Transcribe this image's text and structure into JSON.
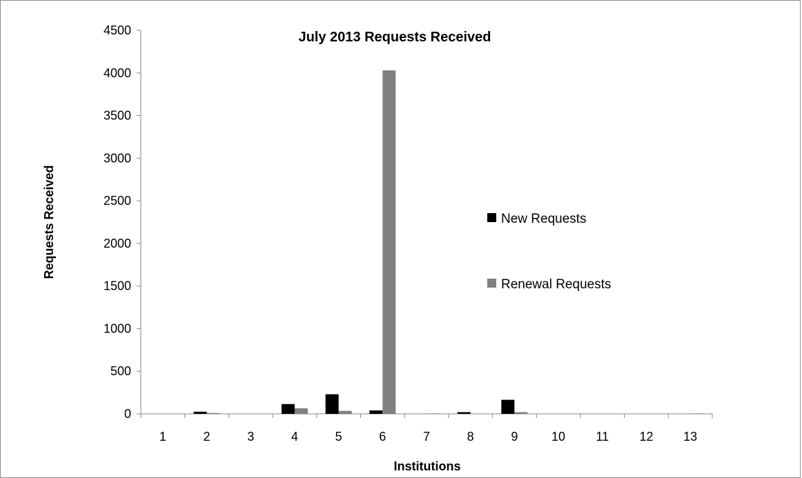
{
  "chart_data": {
    "type": "bar",
    "title": "July 2013 Requests Received",
    "xlabel": "Institutions",
    "ylabel": "Requests Received",
    "categories": [
      "1",
      "2",
      "3",
      "4",
      "5",
      "6",
      "7",
      "8",
      "9",
      "10",
      "11",
      "12",
      "13"
    ],
    "yticks": [
      "0",
      "500",
      "1000",
      "1500",
      "2000",
      "2500",
      "3000",
      "3500",
      "4000",
      "4500"
    ],
    "ylim": [
      0,
      4500
    ],
    "grid": false,
    "legend_position": "right",
    "series": [
      {
        "name": "New Requests",
        "color": "#000000",
        "values": [
          0,
          25,
          0,
          115,
          230,
          40,
          0,
          20,
          165,
          0,
          0,
          0,
          0
        ]
      },
      {
        "name": "Renewal Requests",
        "color": "#808080",
        "values": [
          0,
          10,
          0,
          65,
          35,
          4030,
          5,
          0,
          20,
          0,
          0,
          0,
          5
        ]
      }
    ]
  }
}
